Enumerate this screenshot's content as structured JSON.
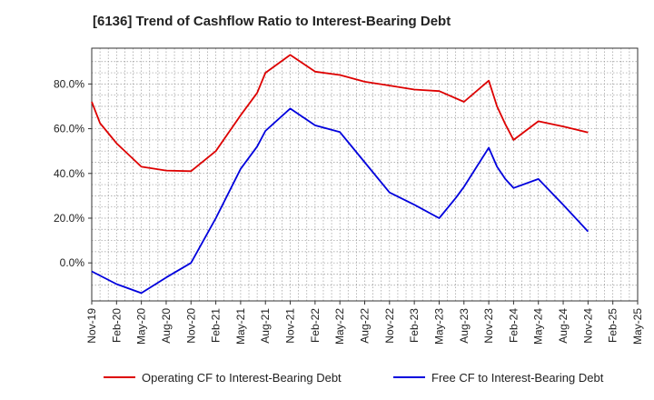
{
  "chart_data": {
    "type": "line",
    "title": "[6136]  Trend of Cashflow Ratio to Interest-Bearing Debt",
    "xlabel": "",
    "ylabel": "",
    "x": [
      "Nov-19",
      "Feb-20",
      "May-20",
      "Aug-20",
      "Nov-20",
      "Feb-21",
      "May-21",
      "Aug-21",
      "Nov-21",
      "Feb-22",
      "May-22",
      "Aug-22",
      "Nov-22",
      "Feb-23",
      "May-23",
      "Aug-23",
      "Nov-23",
      "Feb-24",
      "May-24",
      "Aug-24",
      "Nov-24",
      "Feb-25",
      "May-25"
    ],
    "x_tick_labels": [
      "Nov-19",
      "Feb-20",
      "May-20",
      "Aug-20",
      "Nov-20",
      "Feb-21",
      "May-21",
      "Aug-21",
      "Nov-21",
      "Feb-22",
      "May-22",
      "Aug-22",
      "Nov-22",
      "Feb-23",
      "May-23",
      "Aug-23",
      "Nov-23",
      "Feb-24",
      "May-24",
      "Aug-24",
      "Nov-24",
      "Feb-25",
      "May-25"
    ],
    "y_tick_labels": [
      "0.0%",
      "20.0%",
      "40.0%",
      "60.0%",
      "80.0%"
    ],
    "y_ticks": [
      0,
      20,
      40,
      60,
      80
    ],
    "ylim": [
      -17,
      96
    ],
    "grid": true,
    "legend_position": "bottom",
    "series": [
      {
        "name": "Operating CF to Interest-Bearing Debt",
        "color": "#dd0000",
        "points": [
          [
            "Nov-19",
            72.0
          ],
          [
            "Dec-19",
            62.5
          ],
          [
            "Jan-20",
            58.0
          ],
          [
            "Feb-20",
            53.5
          ],
          [
            "May-20",
            43.0
          ],
          [
            "Aug-20",
            41.3
          ],
          [
            "Nov-20",
            41.0
          ],
          [
            "Feb-21",
            50.0
          ],
          [
            "May-21",
            66.0
          ],
          [
            "Jul-21",
            76.0
          ],
          [
            "Aug-21",
            85.0
          ],
          [
            "Nov-21",
            93.0
          ],
          [
            "Feb-22",
            85.5
          ],
          [
            "May-22",
            84.0
          ],
          [
            "Aug-22",
            81.0
          ],
          [
            "Nov-22",
            79.3
          ],
          [
            "Feb-23",
            77.5
          ],
          [
            "May-23",
            76.8
          ],
          [
            "Aug-23",
            72.0
          ],
          [
            "Nov-23",
            81.5
          ],
          [
            "Dec-23",
            70.0
          ],
          [
            "Jan-24",
            62.0
          ],
          [
            "Feb-24",
            55.0
          ],
          [
            "May-24",
            63.3
          ],
          [
            "Aug-24",
            61.0
          ],
          [
            "Nov-24",
            58.3
          ]
        ]
      },
      {
        "name": "Free CF to Interest-Bearing Debt",
        "color": "#0000dd",
        "points": [
          [
            "Nov-19",
            -3.8
          ],
          [
            "Feb-20",
            -9.5
          ],
          [
            "May-20",
            -13.5
          ],
          [
            "Aug-20",
            -6.5
          ],
          [
            "Nov-20",
            0.0
          ],
          [
            "Feb-21",
            20.0
          ],
          [
            "May-21",
            42.0
          ],
          [
            "Jul-21",
            52.0
          ],
          [
            "Aug-21",
            59.0
          ],
          [
            "Nov-21",
            69.0
          ],
          [
            "Feb-22",
            61.5
          ],
          [
            "May-22",
            58.5
          ],
          [
            "Aug-22",
            45.0
          ],
          [
            "Nov-22",
            31.5
          ],
          [
            "Feb-23",
            26.0
          ],
          [
            "May-23",
            20.0
          ],
          [
            "Jul-23",
            29.0
          ],
          [
            "Aug-23",
            34.0
          ],
          [
            "Nov-23",
            51.5
          ],
          [
            "Dec-23",
            43.0
          ],
          [
            "Jan-24",
            37.5
          ],
          [
            "Feb-24",
            33.5
          ],
          [
            "May-24",
            37.5
          ],
          [
            "Aug-24",
            26.0
          ],
          [
            "Nov-24",
            14.0
          ]
        ]
      }
    ]
  }
}
